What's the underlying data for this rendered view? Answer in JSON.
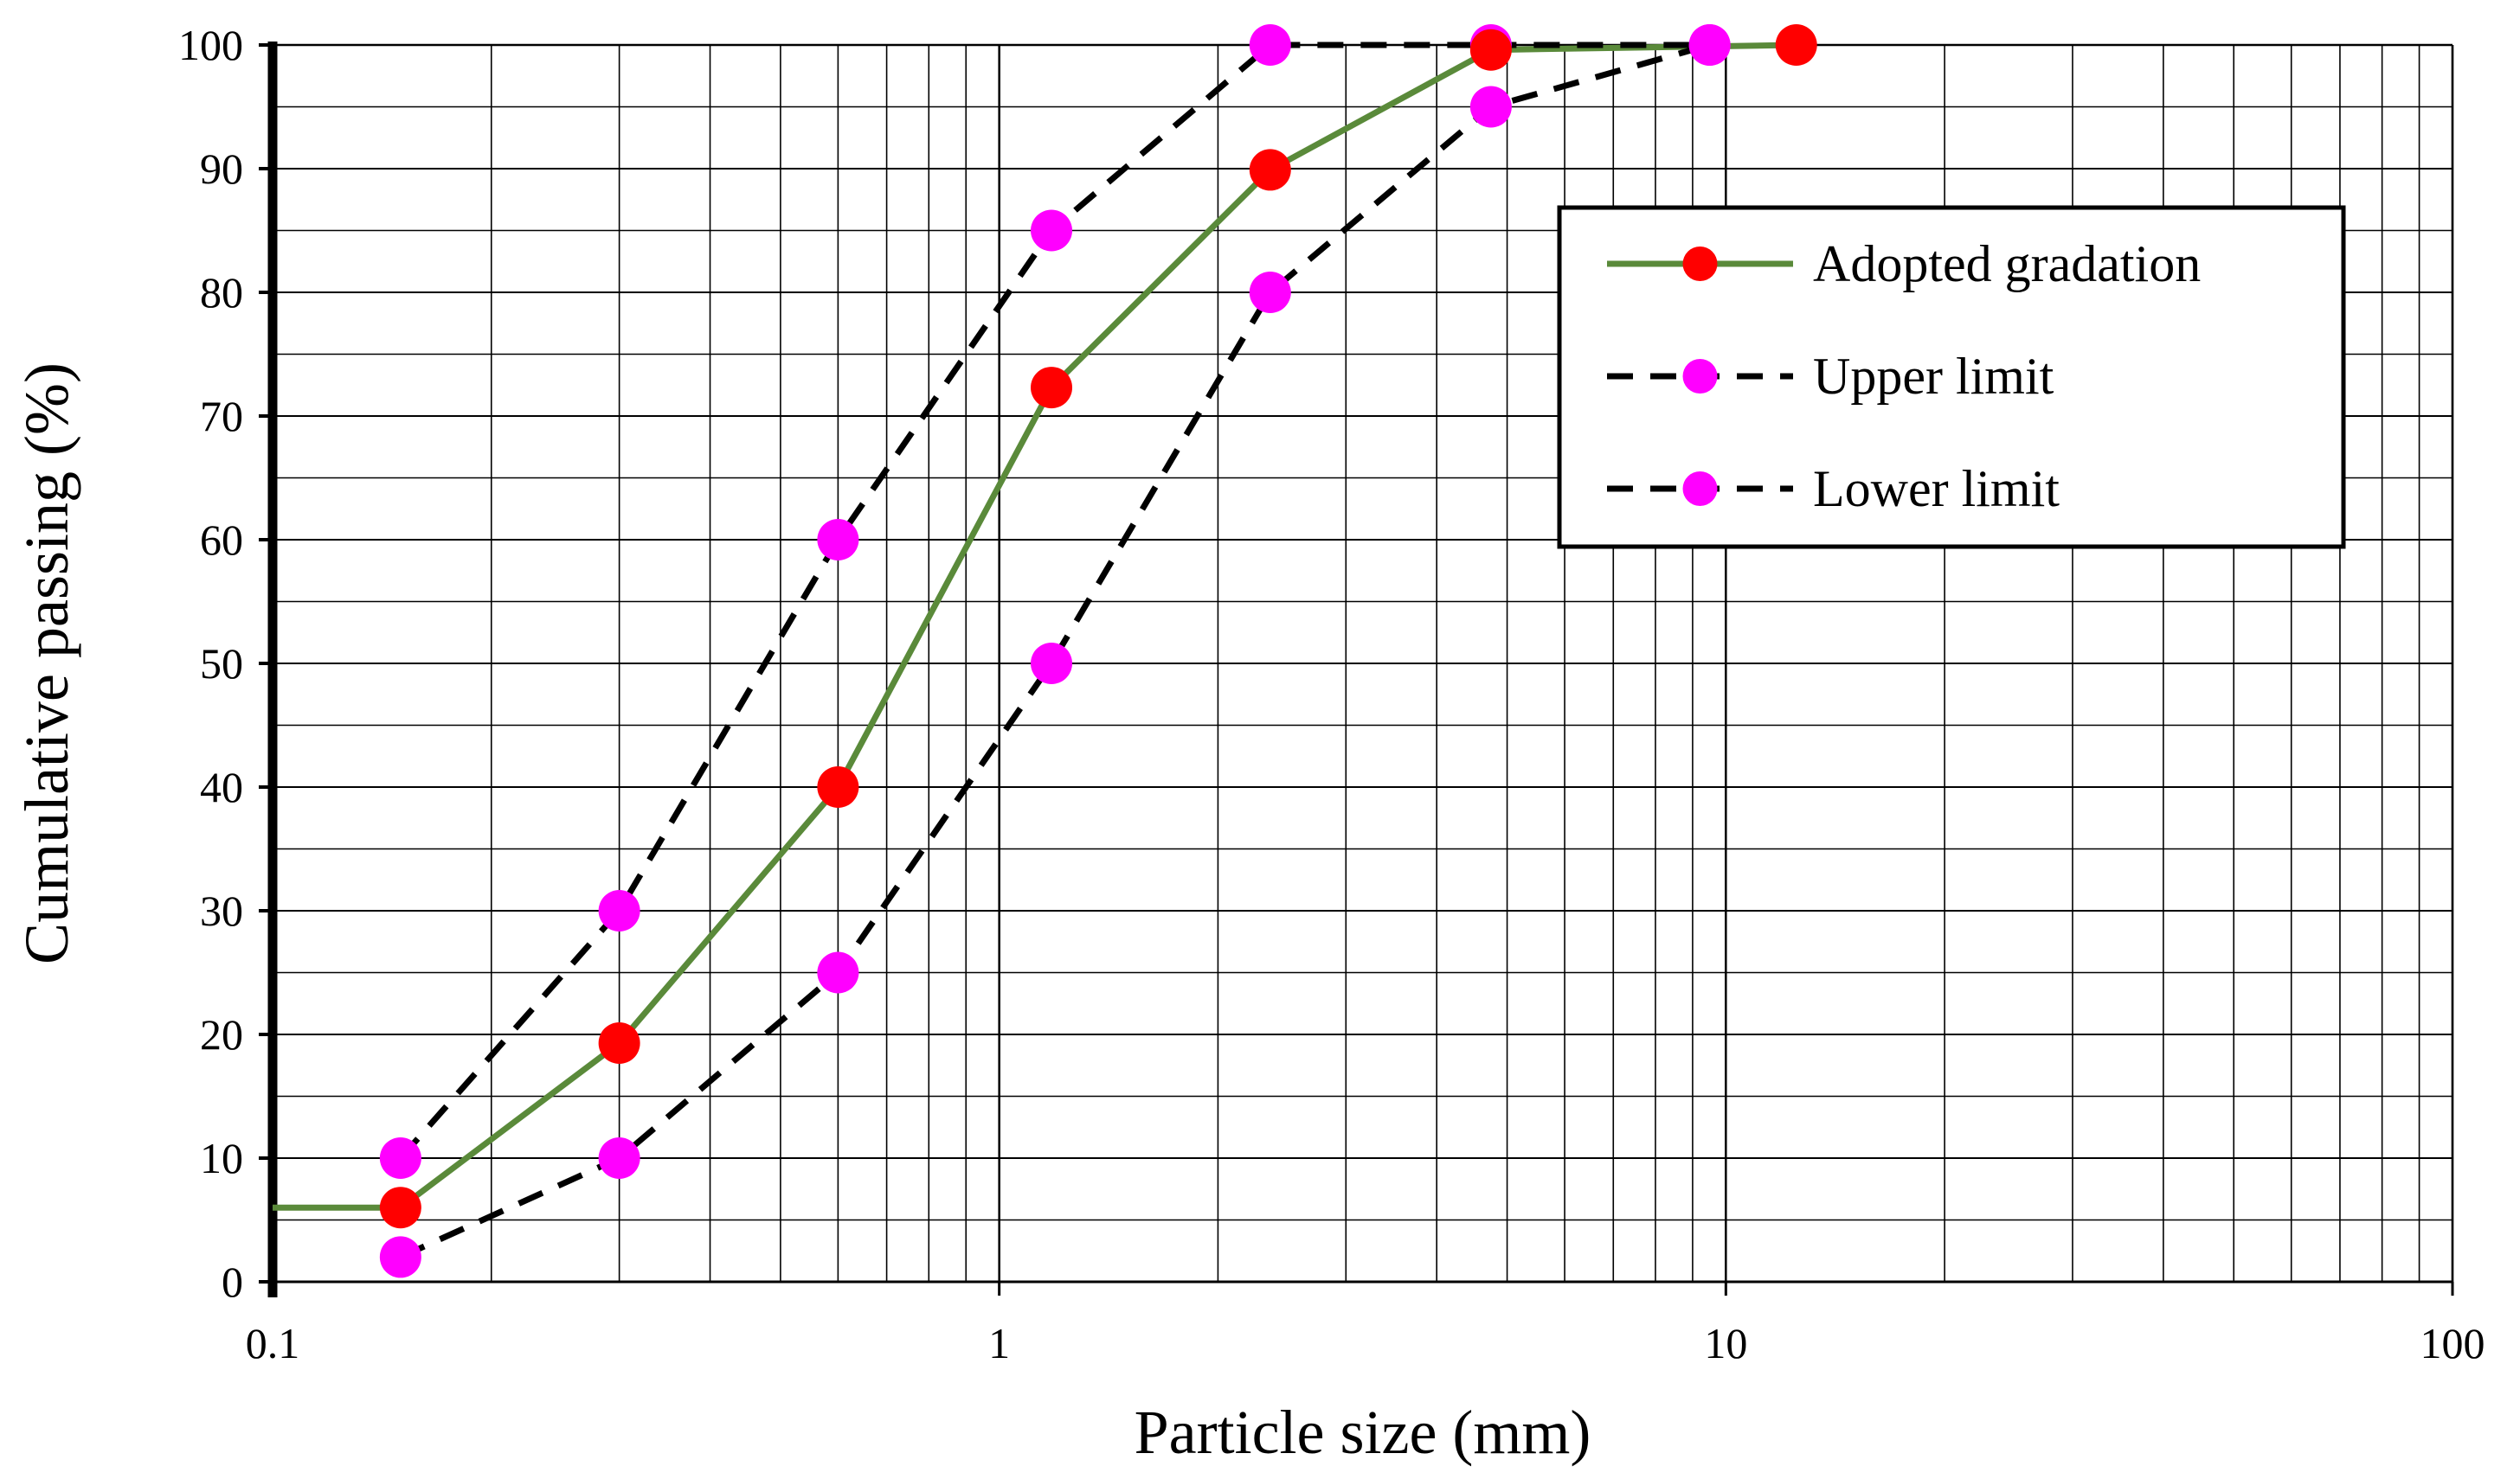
{
  "chart_data": {
    "type": "line",
    "title": "",
    "xlabel": "Particle size (mm)",
    "ylabel": "Cumulative passing (%)",
    "xscale": "log",
    "xlim": [
      0.1,
      100
    ],
    "ylim": [
      0,
      100
    ],
    "xticks": [
      0.1,
      1,
      10,
      100
    ],
    "xtick_labels": [
      "0.1",
      "1",
      "10",
      "100"
    ],
    "yticks": [
      0,
      10,
      20,
      30,
      40,
      50,
      60,
      70,
      80,
      90,
      100
    ],
    "ytick_labels": [
      "0",
      "10",
      "20",
      "30",
      "40",
      "50",
      "60",
      "70",
      "80",
      "90",
      "100"
    ],
    "grid": true,
    "legend_position": "top-right",
    "series": [
      {
        "name": "Adopted gradation",
        "line_style": "solid",
        "line_color": "#5a8a3a",
        "marker_color": "#ff0000",
        "leading_segment": {
          "x": 0.1,
          "y": 6
        },
        "x": [
          0.15,
          0.3,
          0.6,
          1.18,
          2.36,
          4.75,
          12.5
        ],
        "y": [
          6,
          19.3,
          40,
          72.3,
          89.9,
          99.6,
          100
        ]
      },
      {
        "name": "Upper limit",
        "line_style": "dashed",
        "line_color": "#000000",
        "marker_color": "#ff00ff",
        "x": [
          0.15,
          0.3,
          0.6,
          1.18,
          2.36,
          4.75,
          9.5
        ],
        "y": [
          10,
          30,
          60,
          85,
          100,
          100,
          100
        ]
      },
      {
        "name": "Lower limit",
        "line_style": "dashed",
        "line_color": "#000000",
        "marker_color": "#ff00ff",
        "x": [
          0.15,
          0.3,
          0.6,
          1.18,
          2.36,
          4.75,
          9.5
        ],
        "y": [
          2,
          10,
          25,
          50,
          80,
          95,
          100
        ]
      }
    ]
  }
}
